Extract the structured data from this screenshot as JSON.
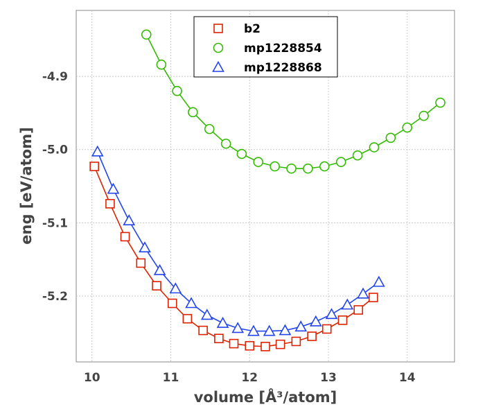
{
  "chart_data": {
    "type": "line",
    "xlabel": "volume [Å³/atom]",
    "ylabel": "eng [eV/atom]",
    "xlim": [
      9.8,
      14.6
    ],
    "ylim": [
      -5.29,
      -4.81
    ],
    "x_ticks": [
      "10",
      "11",
      "12",
      "13",
      "14"
    ],
    "y_ticks": [
      "-4.9",
      "-5.0",
      "-5.1",
      "-5.2"
    ],
    "grid": true,
    "legend_position": "top-center",
    "series": [
      {
        "name": "b2",
        "color": "#dd2200",
        "marker": "square",
        "x": [
          10.03,
          10.23,
          10.42,
          10.62,
          10.82,
          11.02,
          11.21,
          11.41,
          11.61,
          11.8,
          12.0,
          12.2,
          12.39,
          12.59,
          12.79,
          12.98,
          13.18,
          13.38,
          13.57
        ],
        "y": [
          -5.023,
          -5.074,
          -5.119,
          -5.155,
          -5.186,
          -5.21,
          -5.231,
          -5.247,
          -5.258,
          -5.265,
          -5.268,
          -5.269,
          -5.266,
          -5.262,
          -5.255,
          -5.245,
          -5.233,
          -5.219,
          -5.202
        ]
      },
      {
        "name": "mp1228854",
        "color": "#33bb00",
        "marker": "circle",
        "x": [
          10.69,
          10.88,
          11.08,
          11.28,
          11.49,
          11.7,
          11.9,
          12.11,
          12.32,
          12.53,
          12.74,
          12.95,
          13.16,
          13.37,
          13.58,
          13.79,
          14.0,
          14.21,
          14.42
        ],
        "y": [
          -4.843,
          -4.884,
          -4.92,
          -4.949,
          -4.972,
          -4.992,
          -5.006,
          -5.017,
          -5.023,
          -5.026,
          -5.026,
          -5.023,
          -5.017,
          -5.008,
          -4.997,
          -4.984,
          -4.97,
          -4.954,
          -4.936
        ]
      },
      {
        "name": "mp1228868",
        "color": "#2244ee",
        "marker": "triangle",
        "x": [
          10.07,
          10.27,
          10.47,
          10.67,
          10.86,
          11.06,
          11.26,
          11.46,
          11.66,
          11.85,
          12.05,
          12.25,
          12.45,
          12.65,
          12.84,
          13.04,
          13.24,
          13.44,
          13.64
        ],
        "y": [
          -5.003,
          -5.054,
          -5.097,
          -5.134,
          -5.165,
          -5.19,
          -5.21,
          -5.226,
          -5.237,
          -5.244,
          -5.248,
          -5.248,
          -5.247,
          -5.242,
          -5.235,
          -5.225,
          -5.212,
          -5.197,
          -5.181
        ]
      }
    ]
  }
}
